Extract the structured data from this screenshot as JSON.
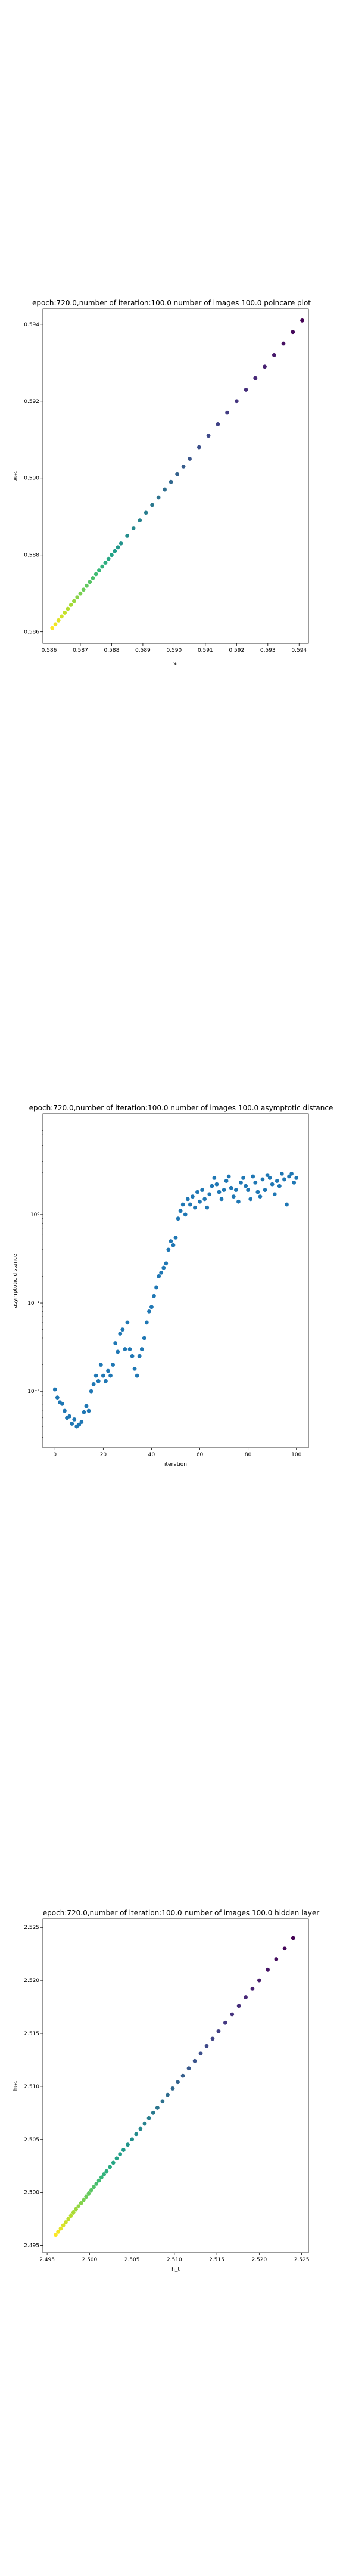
{
  "chart_data": [
    {
      "type": "scatter",
      "title": "epoch:720.0,number of iteration:100.0 number of images 100.0 poincare plot",
      "xlabel": "xₜ",
      "ylabel": "xₜ₊₁",
      "xlim": [
        0.5858,
        0.5943
      ],
      "ylim": [
        0.5857,
        0.5944
      ],
      "x_ticks": [
        0.586,
        0.587,
        0.588,
        0.589,
        0.59,
        0.591,
        0.592,
        0.593,
        0.594
      ],
      "x_ticklabels": [
        "0.586",
        "0.587",
        "0.588",
        "0.589",
        "0.590",
        "0.591",
        "0.592",
        "0.593",
        "0.594"
      ],
      "y_ticks": [
        0.586,
        0.588,
        0.59,
        0.592,
        0.594
      ],
      "y_ticklabels": [
        "0.586",
        "0.588",
        "0.590",
        "0.592",
        "0.594"
      ],
      "grid": false,
      "colormap": "viridis-reversed",
      "series": [
        {
          "x": [
            0.5861,
            0.5862,
            0.5863,
            0.5864,
            0.5865,
            0.5866,
            0.5867,
            0.5868,
            0.5869,
            0.587,
            0.5871,
            0.5872,
            0.5873,
            0.5874,
            0.5875,
            0.5876,
            0.5877,
            0.5878,
            0.5879,
            0.588,
            0.5881,
            0.5882,
            0.5883,
            0.5885,
            0.5887,
            0.5889,
            0.5891,
            0.5893,
            0.5895,
            0.5897,
            0.5899,
            0.5901,
            0.5903,
            0.5905,
            0.5908,
            0.5911,
            0.5914,
            0.5917,
            0.592,
            0.5923,
            0.5926,
            0.5929,
            0.5932,
            0.5935,
            0.5938,
            0.5941
          ],
          "y": [
            0.5861,
            0.5862,
            0.5863,
            0.5864,
            0.5865,
            0.5866,
            0.5867,
            0.5868,
            0.5869,
            0.587,
            0.5871,
            0.5872,
            0.5873,
            0.5874,
            0.5875,
            0.5876,
            0.5877,
            0.5878,
            0.5879,
            0.588,
            0.5881,
            0.5882,
            0.5883,
            0.5885,
            0.5887,
            0.5889,
            0.5891,
            0.5893,
            0.5895,
            0.5897,
            0.5899,
            0.5901,
            0.5903,
            0.5905,
            0.5908,
            0.5911,
            0.5914,
            0.5917,
            0.592,
            0.5923,
            0.5926,
            0.5929,
            0.5932,
            0.5935,
            0.5938,
            0.5941
          ]
        }
      ]
    },
    {
      "type": "scatter",
      "title": "epoch:720.0,number of iteration:100.0  number of images 100.0 asymptotic distance",
      "xlabel": "iteration",
      "ylabel": "asymptotic distance",
      "xlim": [
        -5,
        105
      ],
      "ylim_log10": [
        -2.64,
        1.14
      ],
      "log_y": true,
      "x_ticks": [
        0,
        20,
        40,
        60,
        80,
        100
      ],
      "x_ticklabels": [
        "0",
        "20",
        "40",
        "60",
        "80",
        "100"
      ],
      "y_ticks": [
        0.01,
        0.1,
        1
      ],
      "y_ticklabels": [
        "10⁻²",
        "10⁻¹",
        "10⁰"
      ],
      "grid": false,
      "color": "#1f77b4",
      "series": [
        {
          "x": [
            0,
            1,
            2,
            3,
            4,
            5,
            6,
            7,
            8,
            9,
            10,
            11,
            12,
            13,
            14,
            15,
            16,
            17,
            18,
            19,
            20,
            21,
            22,
            23,
            24,
            25,
            26,
            27,
            28,
            29,
            30,
            31,
            32,
            33,
            34,
            35,
            36,
            37,
            38,
            39,
            40,
            41,
            42,
            43,
            44,
            45,
            46,
            47,
            48,
            49,
            50,
            51,
            52,
            53,
            54,
            55,
            56,
            57,
            58,
            59,
            60,
            61,
            62,
            63,
            64,
            65,
            66,
            67,
            68,
            69,
            70,
            71,
            72,
            73,
            74,
            75,
            76,
            77,
            78,
            79,
            80,
            81,
            82,
            83,
            84,
            85,
            86,
            87,
            88,
            89,
            90,
            91,
            92,
            93,
            94,
            95,
            96,
            97,
            98,
            99,
            100
          ],
          "y": [
            0.0105,
            0.0085,
            0.0075,
            0.0072,
            0.006,
            0.005,
            0.0052,
            0.0043,
            0.0048,
            0.004,
            0.0042,
            0.0045,
            0.0058,
            0.0068,
            0.006,
            0.01,
            0.012,
            0.015,
            0.013,
            0.02,
            0.015,
            0.013,
            0.017,
            0.015,
            0.02,
            0.035,
            0.028,
            0.045,
            0.05,
            0.03,
            0.06,
            0.03,
            0.025,
            0.018,
            0.015,
            0.025,
            0.03,
            0.04,
            0.06,
            0.08,
            0.09,
            0.12,
            0.15,
            0.2,
            0.22,
            0.25,
            0.28,
            0.4,
            0.5,
            0.45,
            0.55,
            0.9,
            1.1,
            1.3,
            1.0,
            1.5,
            1.3,
            1.6,
            1.2,
            1.8,
            1.4,
            1.9,
            1.5,
            1.2,
            1.7,
            2.1,
            2.6,
            2.2,
            1.8,
            1.5,
            1.9,
            2.4,
            2.7,
            2.0,
            1.6,
            1.9,
            1.4,
            2.3,
            2.6,
            2.1,
            1.9,
            1.5,
            2.7,
            2.3,
            1.8,
            1.6,
            2.5,
            1.9,
            2.8,
            2.6,
            2.2,
            1.7,
            2.4,
            2.1,
            2.9,
            2.5,
            1.3,
            2.7,
            2.9,
            2.3,
            2.6
          ]
        }
      ]
    },
    {
      "type": "scatter",
      "title": "epoch:720.0,number of iteration:100.0  number of images 100.0 hidden layer",
      "xlabel": "h_t",
      "ylabel": "hₜ₊₁",
      "xlim": [
        2.4945,
        2.5258
      ],
      "ylim": [
        2.4943,
        2.5258
      ],
      "x_ticks": [
        2.495,
        2.5,
        2.505,
        2.51,
        2.515,
        2.52,
        2.525
      ],
      "x_ticklabels": [
        "2.495",
        "2.500",
        "2.505",
        "2.510",
        "2.515",
        "2.520",
        "2.525"
      ],
      "y_ticks": [
        2.495,
        2.5,
        2.505,
        2.51,
        2.515,
        2.52,
        2.525
      ],
      "y_ticklabels": [
        "2.495",
        "2.500",
        "2.505",
        "2.510",
        "2.515",
        "2.520",
        "2.525"
      ],
      "grid": false,
      "colormap": "viridis-reversed",
      "series": [
        {
          "x": [
            2.496,
            2.4963,
            2.4966,
            2.4969,
            2.4972,
            2.4975,
            2.4978,
            2.4981,
            2.4984,
            2.4987,
            2.499,
            2.4993,
            2.4996,
            2.4999,
            2.5002,
            2.5005,
            2.5008,
            2.5011,
            2.5014,
            2.5017,
            2.502,
            2.5024,
            2.5028,
            2.5032,
            2.5036,
            2.504,
            2.5045,
            2.505,
            2.5055,
            2.506,
            2.5065,
            2.507,
            2.5075,
            2.508,
            2.5086,
            2.5092,
            2.5098,
            2.5104,
            2.511,
            2.5117,
            2.5124,
            2.5131,
            2.5138,
            2.5145,
            2.5152,
            2.516,
            2.5168,
            2.5176,
            2.5184,
            2.5192,
            2.52,
            2.521,
            2.522,
            2.523,
            2.524
          ],
          "y": [
            2.496,
            2.4963,
            2.4966,
            2.4969,
            2.4972,
            2.4975,
            2.4978,
            2.4981,
            2.4984,
            2.4987,
            2.499,
            2.4993,
            2.4996,
            2.4999,
            2.5002,
            2.5005,
            2.5008,
            2.5011,
            2.5014,
            2.5017,
            2.502,
            2.5024,
            2.5028,
            2.5032,
            2.5036,
            2.504,
            2.5045,
            2.505,
            2.5055,
            2.506,
            2.5065,
            2.507,
            2.5075,
            2.508,
            2.5086,
            2.5092,
            2.5098,
            2.5104,
            2.511,
            2.5117,
            2.5124,
            2.5131,
            2.5138,
            2.5145,
            2.5152,
            2.516,
            2.5168,
            2.5176,
            2.5184,
            2.5192,
            2.52,
            2.521,
            2.522,
            2.523,
            2.524
          ]
        }
      ]
    }
  ]
}
